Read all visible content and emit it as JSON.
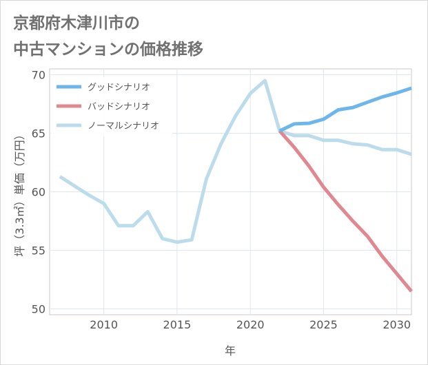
{
  "chart_data": {
    "type": "line",
    "title_lines": [
      "京都府木津川市の",
      "中古マンションの価格推移"
    ],
    "xlabel": "年",
    "ylabel": "坪（3.3㎡）単価（万円）",
    "xlim": [
      2006.3,
      2031
    ],
    "ylim": [
      49.5,
      70.5
    ],
    "x_ticks": [
      2010,
      2015,
      2020,
      2025,
      2030
    ],
    "y_ticks": [
      50,
      55,
      60,
      65,
      70
    ],
    "grid": true,
    "legend_position": "top-left",
    "series": [
      {
        "name": "グッドシナリオ",
        "color": "#6cb6ec",
        "x": [
          2022,
          2023,
          2024,
          2025,
          2026,
          2027,
          2028,
          2029,
          2030,
          2031
        ],
        "y": [
          65.2,
          65.8,
          65.85,
          66.2,
          67.0,
          67.2,
          67.65,
          68.1,
          68.45,
          68.85
        ]
      },
      {
        "name": "バッドシナリオ",
        "color": "#e0888f",
        "x": [
          2022,
          2023,
          2024,
          2025,
          2026,
          2027,
          2028,
          2029,
          2030,
          2031
        ],
        "y": [
          65.2,
          63.8,
          62.2,
          60.4,
          58.9,
          57.5,
          56.2,
          54.5,
          53.0,
          51.5
        ]
      },
      {
        "name": "ノーマルシナリオ",
        "color": "#bcdcec",
        "x": [
          2007,
          2008,
          2009,
          2010,
          2011,
          2012,
          2013,
          2014,
          2015,
          2016,
          2017,
          2018,
          2019,
          2020,
          2021,
          2022,
          2023,
          2024,
          2025,
          2026,
          2027,
          2028,
          2029,
          2030,
          2031
        ],
        "y": [
          61.3,
          60.5,
          59.7,
          59.0,
          57.1,
          57.1,
          58.3,
          56.0,
          55.7,
          55.9,
          61.1,
          64.1,
          66.5,
          68.4,
          69.5,
          65.2,
          64.8,
          64.8,
          64.4,
          64.4,
          64.1,
          64.0,
          63.6,
          63.6,
          63.2
        ]
      }
    ]
  }
}
